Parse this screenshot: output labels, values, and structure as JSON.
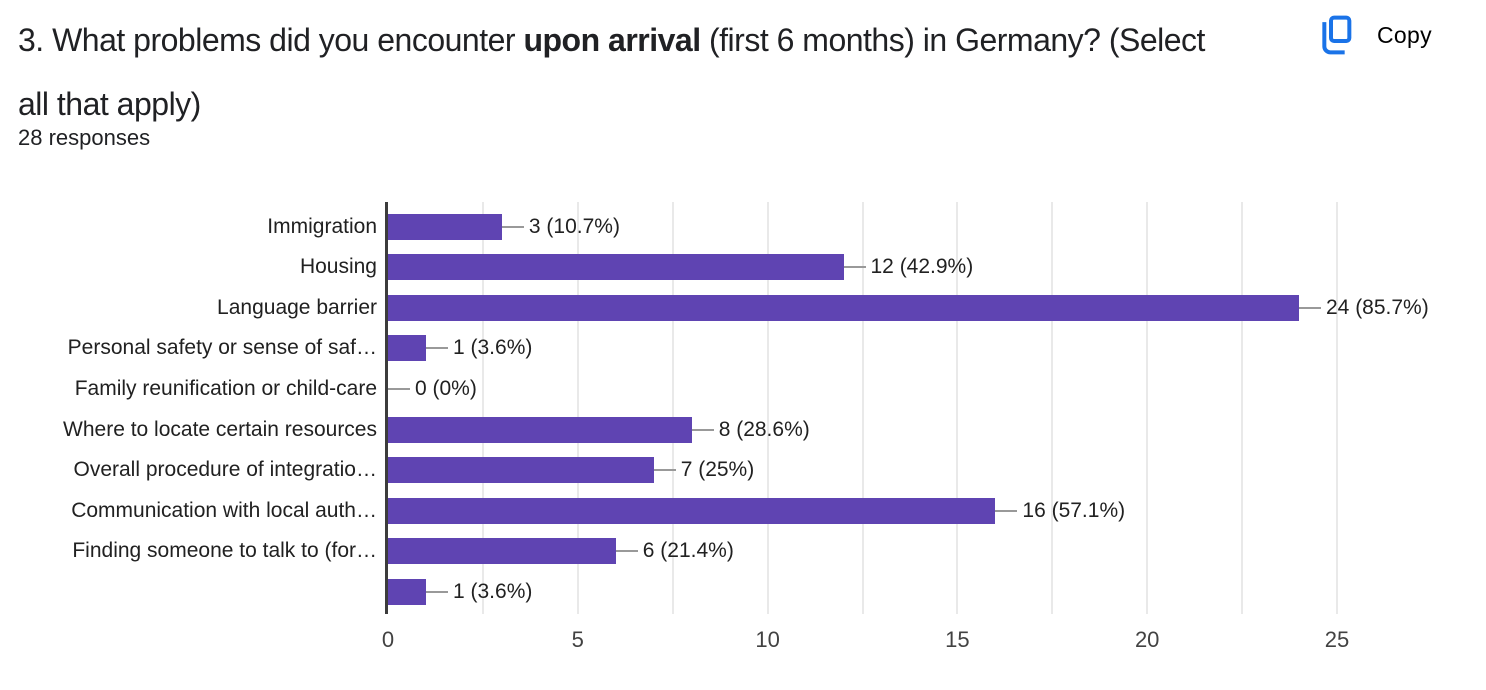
{
  "header": {
    "title_prefix": "3. What problems did you encounter ",
    "title_bold": "upon arrival",
    "title_suffix": " (first 6 months) in Germany? (Select",
    "title_line2": "all that apply)",
    "responses_label": "28 responses",
    "copy_label": "Copy",
    "accent_color": "#1a73e8"
  },
  "chart_data": {
    "type": "bar",
    "orientation": "horizontal",
    "title": "",
    "xlabel": "",
    "ylabel": "",
    "legend": "none",
    "grid": "on",
    "categories": [
      "Immigration",
      "Housing",
      "Language barrier",
      "Personal safety or sense of saf…",
      "Family reunification or child-care",
      "Where to locate certain resources",
      "Overall procedure of integratio…",
      "Communication with local auth…",
      "Finding someone to talk to (for…",
      ""
    ],
    "values": [
      3,
      12,
      24,
      1,
      0,
      8,
      7,
      16,
      6,
      1
    ],
    "annotations": [
      "3 (10.7%)",
      "12 (42.9%)",
      "24 (85.7%)",
      "1 (3.6%)",
      "0 (0%)",
      "8 (28.6%)",
      "7 (25%)",
      "16 (57.1%)",
      "6 (21.4%)",
      "1 (3.6%)"
    ],
    "total_responses": 28,
    "xlim": [
      0,
      25
    ],
    "x_ticks": [
      0,
      5,
      10,
      15,
      20,
      25
    ],
    "gridline_step": 2.5,
    "bar_color": "#5f44b2",
    "grid_color": "#e9e9e9",
    "axis_color": "#3c3c3c",
    "connector_color": "#999999",
    "text_color": "#212121"
  }
}
